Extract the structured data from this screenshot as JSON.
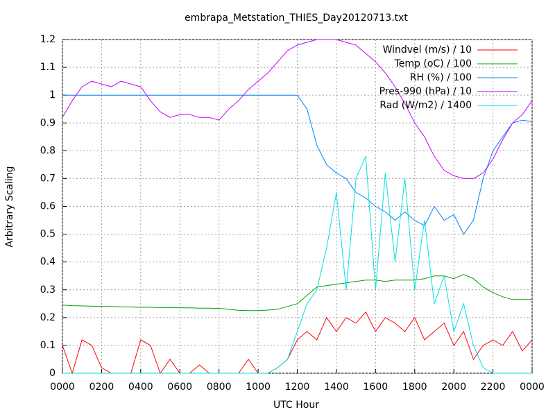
{
  "chart_data": {
    "type": "line",
    "title": "embrapa_Metstation_THIES_Day20120713.txt",
    "x_label": "UTC Hour",
    "y_label": "Arbitrary Scaling",
    "xlim": [
      0,
      24
    ],
    "ylim": [
      0,
      1.2
    ],
    "xticks": [
      {
        "value": 0,
        "label": "0000"
      },
      {
        "value": 2,
        "label": "0200"
      },
      {
        "value": 4,
        "label": "0400"
      },
      {
        "value": 6,
        "label": "0600"
      },
      {
        "value": 8,
        "label": "0800"
      },
      {
        "value": 10,
        "label": "1000"
      },
      {
        "value": 12,
        "label": "1200"
      },
      {
        "value": 14,
        "label": "1400"
      },
      {
        "value": 16,
        "label": "1600"
      },
      {
        "value": 18,
        "label": "1800"
      },
      {
        "value": 20,
        "label": "2000"
      },
      {
        "value": 22,
        "label": "2200"
      },
      {
        "value": 24,
        "label": "0000"
      }
    ],
    "yticks": [
      0,
      0.1,
      0.2,
      0.3,
      0.4,
      0.5,
      0.6,
      0.7,
      0.8,
      0.9,
      1,
      1.1,
      1.2
    ],
    "grid": true,
    "legend": "top-right",
    "x": [
      0,
      0.5,
      1,
      1.5,
      2,
      2.5,
      3,
      3.5,
      4,
      4.5,
      5,
      5.5,
      6,
      6.5,
      7,
      7.5,
      8,
      8.5,
      9,
      9.5,
      10,
      10.5,
      11,
      11.5,
      12,
      12.5,
      13,
      13.5,
      14,
      14.5,
      15,
      15.5,
      16,
      16.5,
      17,
      17.5,
      18,
      18.5,
      19,
      19.5,
      20,
      20.5,
      21,
      21.5,
      22,
      22.5,
      23,
      23.5,
      24
    ],
    "series": [
      {
        "name": "Windvel (m/s) / 10",
        "color": "#ff0000",
        "values": [
          0.1,
          0,
          0.12,
          0.1,
          0.02,
          0,
          0,
          0,
          0.12,
          0.1,
          0,
          0.05,
          0,
          0,
          0.03,
          0,
          0,
          0,
          0,
          0.05,
          0,
          0,
          0.02,
          0.05,
          0.12,
          0.15,
          0.12,
          0.2,
          0.15,
          0.2,
          0.18,
          0.22,
          0.15,
          0.2,
          0.18,
          0.15,
          0.2,
          0.12,
          0.15,
          0.18,
          0.1,
          0.15,
          0.05,
          0.1,
          0.12,
          0.1,
          0.15,
          0.08,
          0.12
        ]
      },
      {
        "name": "Temp (oC) / 100",
        "color": "#00a000",
        "values": [
          0.245,
          0.243,
          0.242,
          0.241,
          0.24,
          0.24,
          0.239,
          0.238,
          0.237,
          0.237,
          0.236,
          0.236,
          0.235,
          0.235,
          0.234,
          0.234,
          0.233,
          0.23,
          0.226,
          0.225,
          0.225,
          0.227,
          0.23,
          0.24,
          0.25,
          0.28,
          0.31,
          0.315,
          0.32,
          0.325,
          0.33,
          0.335,
          0.335,
          0.33,
          0.335,
          0.335,
          0.335,
          0.34,
          0.35,
          0.35,
          0.34,
          0.355,
          0.34,
          0.31,
          0.29,
          0.275,
          0.265,
          0.265,
          0.265
        ]
      },
      {
        "name": "RH (%) / 100",
        "color": "#0080ff",
        "values": [
          1,
          1,
          1,
          1,
          1,
          1,
          1,
          1,
          1,
          1,
          1,
          1,
          1,
          1,
          1,
          1,
          1,
          1,
          1,
          1,
          1,
          1,
          1,
          1,
          1,
          0.95,
          0.82,
          0.75,
          0.72,
          0.7,
          0.65,
          0.63,
          0.6,
          0.58,
          0.55,
          0.58,
          0.55,
          0.53,
          0.6,
          0.55,
          0.57,
          0.5,
          0.55,
          0.7,
          0.8,
          0.85,
          0.9,
          0.91,
          0.905
        ]
      },
      {
        "name": "Pres-990 (hPa) / 10",
        "color": "#c000ff",
        "values": [
          0.92,
          0.98,
          1.03,
          1.05,
          1.04,
          1.03,
          1.05,
          1.04,
          1.03,
          0.98,
          0.94,
          0.92,
          0.93,
          0.93,
          0.92,
          0.92,
          0.91,
          0.95,
          0.98,
          1.02,
          1.05,
          1.08,
          1.12,
          1.16,
          1.18,
          1.19,
          1.2,
          1.2,
          1.2,
          1.19,
          1.18,
          1.15,
          1.12,
          1.08,
          1.03,
          0.97,
          0.9,
          0.85,
          0.78,
          0.73,
          0.71,
          0.7,
          0.7,
          0.72,
          0.77,
          0.84,
          0.9,
          0.93,
          0.98
        ]
      },
      {
        "name": "Rad (W/m2) / 1400",
        "color": "#00e0e0",
        "values": [
          0,
          0,
          0,
          0,
          0,
          0,
          0,
          0,
          0,
          0,
          0,
          0,
          0,
          0,
          0,
          0,
          0,
          0,
          0,
          0,
          0,
          0,
          0.02,
          0.05,
          0.15,
          0.25,
          0.3,
          0.45,
          0.65,
          0.3,
          0.7,
          0.78,
          0.3,
          0.72,
          0.4,
          0.7,
          0.3,
          0.55,
          0.25,
          0.35,
          0.15,
          0.25,
          0.1,
          0.02,
          0,
          0,
          0,
          0,
          0
        ]
      }
    ]
  }
}
